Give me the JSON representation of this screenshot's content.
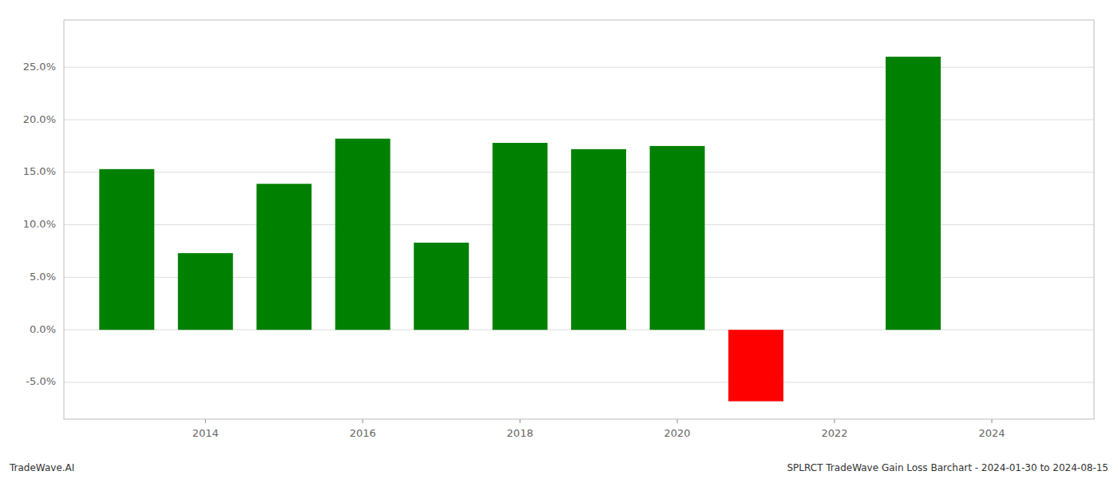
{
  "chart_data": {
    "type": "bar",
    "x": [
      2013,
      2014,
      2015,
      2016,
      2017,
      2018,
      2019,
      2020,
      2021,
      2023
    ],
    "values": [
      0.153,
      0.073,
      0.139,
      0.182,
      0.083,
      0.178,
      0.172,
      0.175,
      -0.068,
      0.26
    ],
    "colors": [
      "#008000",
      "#008000",
      "#008000",
      "#008000",
      "#008000",
      "#008000",
      "#008000",
      "#008000",
      "#ff0000",
      "#008000"
    ],
    "xlim": [
      2012.2,
      2025.3
    ],
    "xticks": [
      2014,
      2016,
      2018,
      2020,
      2022,
      2024
    ],
    "ylim": [
      -0.085,
      0.295
    ],
    "yticks": [
      {
        "value": -0.05,
        "label": "-5.0%"
      },
      {
        "value": 0.0,
        "label": "0.0%"
      },
      {
        "value": 0.05,
        "label": "5.0%"
      },
      {
        "value": 0.1,
        "label": "10.0%"
      },
      {
        "value": 0.15,
        "label": "15.0%"
      },
      {
        "value": 0.2,
        "label": "20.0%"
      },
      {
        "value": 0.25,
        "label": "25.0%"
      }
    ],
    "grid": true,
    "annotations": [
      "TradeWave.AI",
      "SPLRCT TradeWave Gain Loss Barchart - 2024-01-30 to 2024-08-15"
    ]
  }
}
